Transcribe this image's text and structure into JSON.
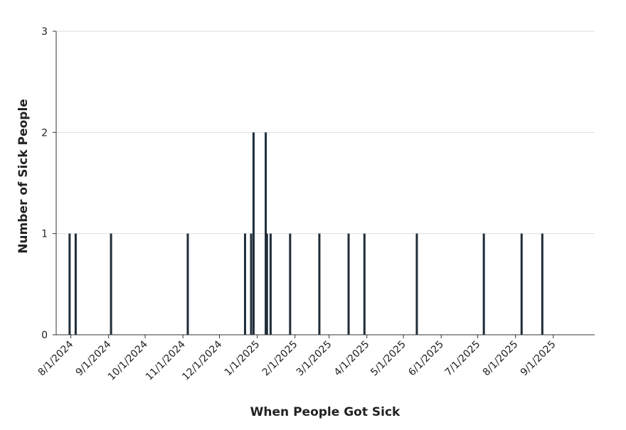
{
  "chart_data": {
    "type": "bar",
    "title": "",
    "xlabel": "When People Got Sick",
    "ylabel": "Number of Sick People",
    "ylim": [
      0,
      3
    ],
    "yticks": [
      0,
      1,
      2,
      3
    ],
    "xlim": [
      "2024-07-20",
      "2025-10-05"
    ],
    "xtick_labels": [
      "8/1/2024",
      "9/1/2024",
      "10/1/2024",
      "11/1/2024",
      "12/1/2024",
      "1/1/2025",
      "2/1/2025",
      "3/1/2025",
      "4/1/2025",
      "5/1/2025",
      "6/1/2025",
      "7/1/2025",
      "8/1/2025",
      "9/1/2025"
    ],
    "xtick_dates": [
      "2024-08-01",
      "2024-09-01",
      "2024-10-01",
      "2024-11-01",
      "2024-12-01",
      "2025-01-01",
      "2025-02-01",
      "2025-03-01",
      "2025-04-01",
      "2025-05-01",
      "2025-06-01",
      "2025-07-01",
      "2025-08-01",
      "2025-09-01"
    ],
    "grid": true,
    "bar_color": "#1f2d3a",
    "data": [
      {
        "x": "2024-07-31",
        "y": 1
      },
      {
        "x": "2024-08-05",
        "y": 1
      },
      {
        "x": "2024-09-03",
        "y": 1
      },
      {
        "x": "2024-11-05",
        "y": 1
      },
      {
        "x": "2024-12-22",
        "y": 1
      },
      {
        "x": "2024-12-27",
        "y": 1
      },
      {
        "x": "2024-12-29",
        "y": 2
      },
      {
        "x": "2025-01-08",
        "y": 2
      },
      {
        "x": "2025-01-09",
        "y": 1
      },
      {
        "x": "2025-01-12",
        "y": 1
      },
      {
        "x": "2025-01-28",
        "y": 1
      },
      {
        "x": "2025-02-21",
        "y": 1
      },
      {
        "x": "2025-03-17",
        "y": 1
      },
      {
        "x": "2025-03-30",
        "y": 1
      },
      {
        "x": "2025-05-12",
        "y": 1
      },
      {
        "x": "2025-07-06",
        "y": 1
      },
      {
        "x": "2025-08-06",
        "y": 1
      },
      {
        "x": "2025-08-23",
        "y": 1
      }
    ]
  }
}
